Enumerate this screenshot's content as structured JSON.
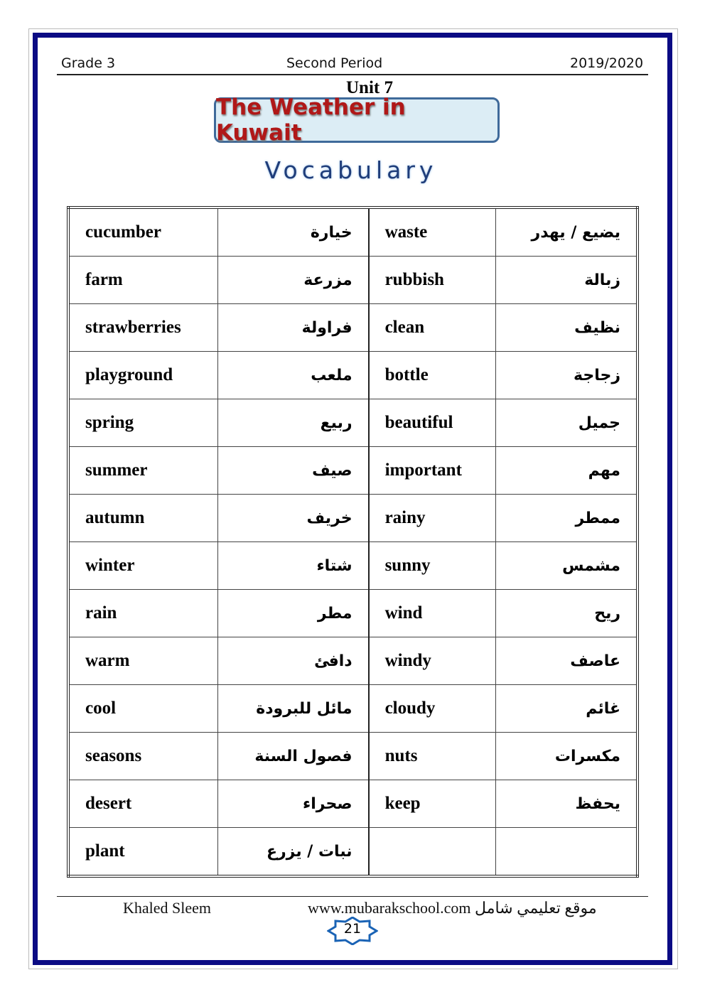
{
  "header": {
    "grade": "Grade 3",
    "period": "Second Period",
    "year": "2019/2020"
  },
  "unit": "Unit 7",
  "title": "The Weather in Kuwait",
  "subtitle": "Vocabulary",
  "rows": [
    [
      "cucumber",
      "خيارة",
      "waste",
      "يضيع / يهدر"
    ],
    [
      "farm",
      "مزرعة",
      "rubbish",
      "زبالة"
    ],
    [
      "strawberries",
      "فراولة",
      "clean",
      "نظيف"
    ],
    [
      "playground",
      "ملعب",
      "bottle",
      "زجاجة"
    ],
    [
      "spring",
      "ربيع",
      "beautiful",
      "جميل"
    ],
    [
      "summer",
      "صيف",
      "important",
      "مهم"
    ],
    [
      "autumn",
      "خريف",
      "rainy",
      "ممطر"
    ],
    [
      "winter",
      "شتاء",
      "sunny",
      "مشمس"
    ],
    [
      "rain",
      "مطر",
      "wind",
      "ريح"
    ],
    [
      "warm",
      "دافئ",
      "windy",
      "عاصف"
    ],
    [
      "cool",
      "مائل للبرودة",
      "cloudy",
      "غائم"
    ],
    [
      "seasons",
      "فصول السنة",
      "nuts",
      "مكسرات"
    ],
    [
      "desert",
      "صحراء",
      "keep",
      "يحفظ"
    ],
    [
      "plant",
      "نبات / يزرع",
      "",
      ""
    ]
  ],
  "footer": {
    "author": "Khaled Sleem",
    "site": "www.mubarakschool.com موقع تعليمي شامل",
    "page": "21"
  },
  "colors": {
    "frame": "#0b0b84",
    "title": "#b01818",
    "banner": "#dcedf5"
  }
}
